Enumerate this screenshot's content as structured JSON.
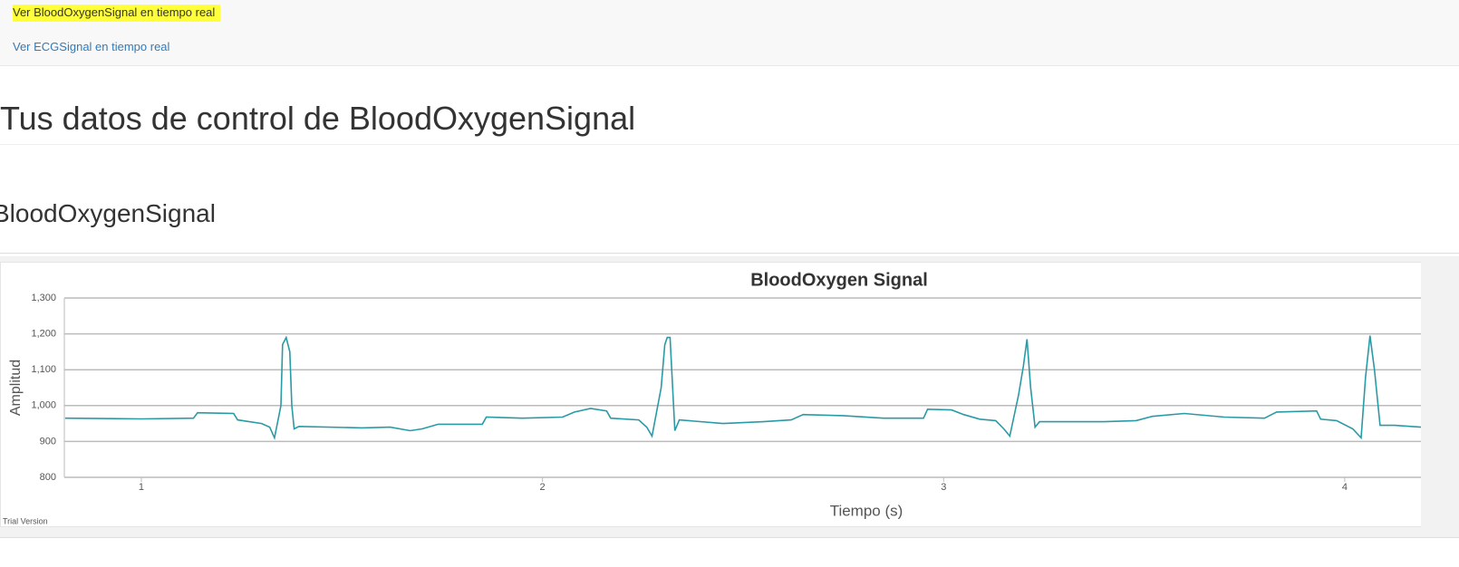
{
  "nav": {
    "links": [
      "Ver BloodOxygenSignal en tiempo real",
      "Ver ECGSignal en tiempo real"
    ]
  },
  "header": {
    "title": "Tus datos de control de BloodOxygenSignal"
  },
  "section": {
    "title": "BloodOxygenSignal"
  },
  "chart_data": {
    "type": "line",
    "title": "BloodOxygen Signal",
    "x_label": "Tiempo (s)",
    "y_label": "Amplitud",
    "watermark": "Trial Version",
    "x": [
      0.81,
      1.0,
      1.13,
      1.14,
      1.23,
      1.24,
      1.3,
      1.32,
      1.332,
      1.348,
      1.352,
      1.361,
      1.37,
      1.375,
      1.381,
      1.393,
      1.55,
      1.62,
      1.67,
      1.7,
      1.74,
      1.85,
      1.86,
      1.95,
      2.05,
      2.08,
      2.12,
      2.16,
      2.17,
      2.24,
      2.26,
      2.273,
      2.296,
      2.305,
      2.311,
      2.318,
      2.33,
      2.341,
      2.45,
      2.55,
      2.62,
      2.65,
      2.75,
      2.85,
      2.95,
      2.96,
      3.02,
      3.05,
      3.09,
      3.13,
      3.15,
      3.165,
      3.187,
      3.199,
      3.208,
      3.217,
      3.228,
      3.239,
      3.4,
      3.48,
      3.52,
      3.6,
      3.7,
      3.8,
      3.83,
      3.93,
      3.94,
      3.98,
      4.02,
      4.041,
      4.052,
      4.063,
      4.074,
      4.088,
      4.124,
      4.19
    ],
    "series": [
      {
        "name": "BloodOxygen",
        "color": "#2a9aa5",
        "values": [
          965,
          963,
          965,
          980,
          978,
          960,
          950,
          940,
          910,
          1000,
          1170,
          1190,
          1150,
          1000,
          935,
          942,
          938,
          940,
          930,
          935,
          948,
          948,
          968,
          965,
          968,
          982,
          992,
          985,
          965,
          960,
          940,
          915,
          1050,
          1170,
          1190,
          1190,
          930,
          960,
          950,
          955,
          960,
          975,
          972,
          965,
          965,
          990,
          988,
          975,
          962,
          958,
          935,
          915,
          1030,
          1110,
          1185,
          1050,
          940,
          955,
          955,
          958,
          970,
          978,
          968,
          965,
          982,
          985,
          962,
          958,
          935,
          910,
          1080,
          1195,
          1100,
          945,
          945,
          940
        ]
      }
    ],
    "xlim": [
      0.808,
      4.19
    ],
    "xticks": [
      1,
      2,
      3,
      4
    ],
    "ylim": [
      800,
      1300
    ],
    "yticks": [
      800,
      900,
      {
        "value": 1000,
        "label": "1,000"
      },
      {
        "value": 1100,
        "label": "1,100"
      },
      {
        "value": 1200,
        "label": "1,200"
      },
      {
        "value": 1300,
        "label": "1,300"
      }
    ],
    "grid": true
  }
}
